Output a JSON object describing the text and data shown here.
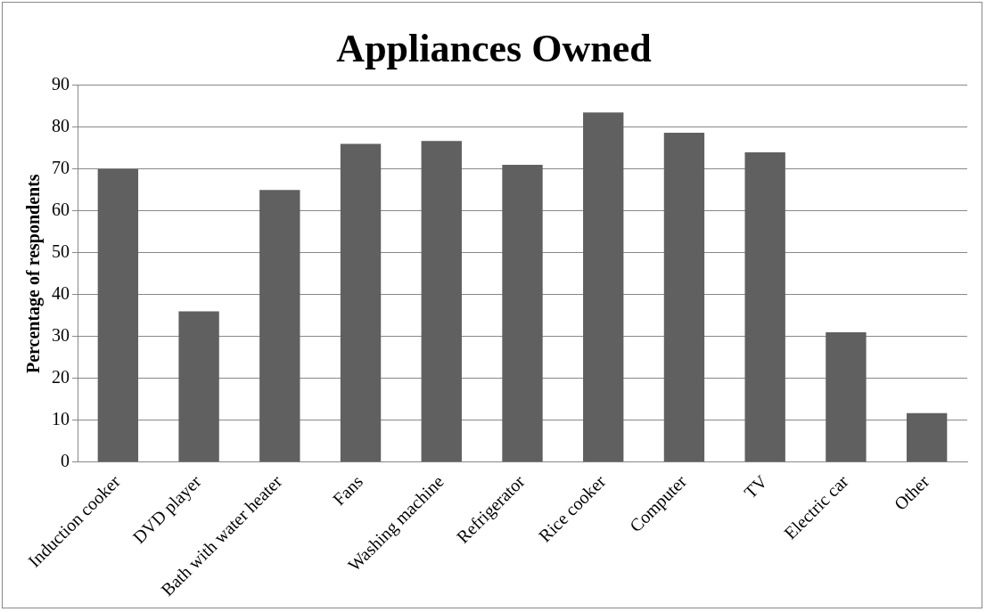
{
  "chart_data": {
    "type": "bar",
    "title": "Appliances Owned",
    "ylabel": "Percentage of respondents",
    "categories": [
      "Induction cooker",
      "DVD player",
      "Bath with water heater",
      "Fans",
      "Washing machine",
      "Refrigerator",
      "Rice cooker",
      "Computer",
      "TV",
      "Electric car",
      "Other"
    ],
    "values": [
      70,
      36,
      65,
      76,
      76.7,
      71,
      83.5,
      78.7,
      74,
      31,
      11.7
    ],
    "color": "#606060",
    "ylim": [
      0,
      90
    ],
    "yticks": [
      0,
      10,
      20,
      30,
      40,
      50,
      60,
      70,
      80,
      90
    ],
    "grid": "y",
    "legend": false
  }
}
